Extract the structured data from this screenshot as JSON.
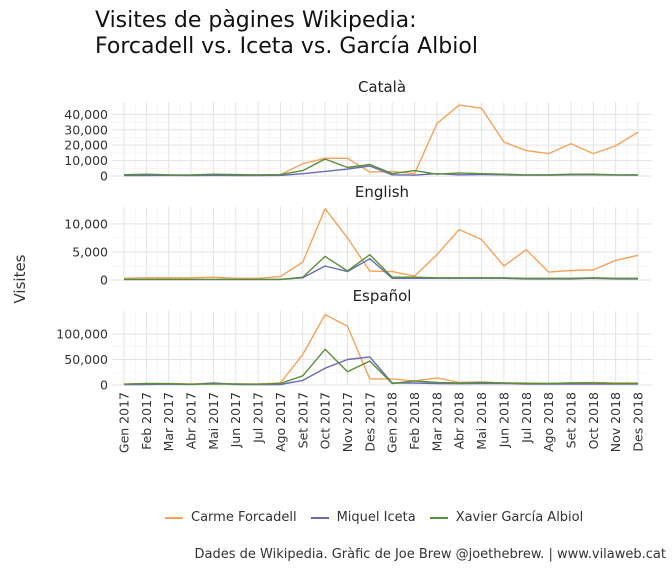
{
  "title_line1": "Visites de pàgines Wikipedia:",
  "title_line2": "Forcadell vs. Iceta vs. García Albiol",
  "ylabel": "Visites",
  "caption": "Dades de Wikipedia. Gràfic de Joe Brew @joethebrew. | www.vilaweb.cat",
  "legend_labels": [
    "Carme Forcadell",
    "Miquel Iceta",
    "Xavier García Albiol"
  ],
  "colors": [
    "#f5a35a",
    "#6b6bb5",
    "#5a8f3a"
  ],
  "chart_data": {
    "type": "line",
    "categories": [
      "Gen 2017",
      "Feb 2017",
      "Mar 2017",
      "Abr 2017",
      "Mai 2017",
      "Jun 2017",
      "Jul 2017",
      "Ago 2017",
      "Set 2017",
      "Oct 2017",
      "Nov 2017",
      "Des 2017",
      "Gen 2018",
      "Feb 2018",
      "Mar 2018",
      "Abr 2018",
      "Mai 2018",
      "Jun 2018",
      "Jul 2018",
      "Ago 2018",
      "Set 2018",
      "Oct 2018",
      "Nov 2018",
      "Des 2018"
    ],
    "xlabel": "",
    "ylabel": "Visites",
    "panels": [
      {
        "name": "Català",
        "ylim": [
          0,
          48000
        ],
        "yticks": [
          0,
          10000,
          20000,
          30000,
          40000
        ],
        "ytick_labels": [
          "0",
          "10,000",
          "20,000",
          "30,000",
          "40,000"
        ],
        "series": [
          {
            "name": "Carme Forcadell",
            "values": [
              500,
              600,
              700,
              400,
              800,
              400,
              500,
              900,
              8000,
              11500,
              11500,
              2500,
              3000,
              1500,
              34000,
              46000,
              44000,
              22000,
              16500,
              14500,
              21000,
              14500,
              19500,
              28500
            ]
          },
          {
            "name": "Miquel Iceta",
            "values": [
              300,
              300,
              400,
              300,
              400,
              300,
              300,
              400,
              1500,
              3000,
              4500,
              6500,
              800,
              600,
              1500,
              800,
              900,
              800,
              500,
              500,
              800,
              800,
              600,
              500
            ]
          },
          {
            "name": "Xavier García Albiol",
            "values": [
              800,
              1200,
              800,
              700,
              1200,
              900,
              800,
              900,
              3500,
              11000,
              5500,
              7500,
              1500,
              3500,
              1200,
              2000,
              1500,
              1200,
              800,
              800,
              1200,
              1200,
              800,
              800
            ]
          }
        ]
      },
      {
        "name": "English",
        "ylim": [
          0,
          13000
        ],
        "yticks": [
          0,
          5000,
          10000
        ],
        "ytick_labels": [
          "0",
          "5,000",
          "10,000"
        ],
        "series": [
          {
            "name": "Carme Forcadell",
            "values": [
              300,
              400,
              400,
              400,
              500,
              300,
              300,
              600,
              3200,
              12700,
              7500,
              1600,
              1500,
              700,
              4500,
              9000,
              7200,
              2500,
              5400,
              1400,
              1700,
              1800,
              3500,
              4400
            ]
          },
          {
            "name": "Miquel Iceta",
            "values": [
              100,
              100,
              100,
              100,
              100,
              100,
              100,
              100,
              400,
              2500,
              1500,
              3800,
              300,
              300,
              300,
              300,
              300,
              300,
              200,
              200,
              200,
              300,
              200,
              200
            ]
          },
          {
            "name": "Xavier García Albiol",
            "values": [
              100,
              100,
              100,
              100,
              100,
              100,
              100,
              100,
              500,
              4200,
              1600,
              4500,
              500,
              500,
              400,
              400,
              400,
              400,
              300,
              300,
              300,
              400,
              300,
              300
            ]
          }
        ]
      },
      {
        "name": "Español",
        "ylim": [
          0,
          145000
        ],
        "yticks": [
          0,
          50000,
          100000
        ],
        "ytick_labels": [
          "0",
          "50,000",
          "100,000"
        ],
        "series": [
          {
            "name": "Carme Forcadell",
            "values": [
              2000,
              2500,
              3000,
              2000,
              3000,
              2000,
              2000,
              4000,
              60000,
              138000,
              115000,
              12000,
              12000,
              8000,
              14000,
              5000,
              6000,
              4000,
              4000,
              3000,
              4000,
              5000,
              4000,
              4000
            ]
          },
          {
            "name": "Miquel Iceta",
            "values": [
              1000,
              1000,
              1500,
              1000,
              4000,
              1000,
              1000,
              1000,
              9000,
              33000,
              50000,
              55000,
              4000,
              4000,
              3000,
              2500,
              3000,
              3000,
              2000,
              2000,
              2000,
              2000,
              2000,
              2000
            ]
          },
          {
            "name": "Xavier García Albiol",
            "values": [
              1500,
              3000,
              2500,
              1500,
              2000,
              2000,
              1500,
              3000,
              18000,
              70000,
              26000,
              47000,
              3000,
              8000,
              5000,
              4000,
              5000,
              4000,
              3000,
              3000,
              4000,
              4000,
              3000,
              3000
            ]
          }
        ]
      }
    ]
  }
}
